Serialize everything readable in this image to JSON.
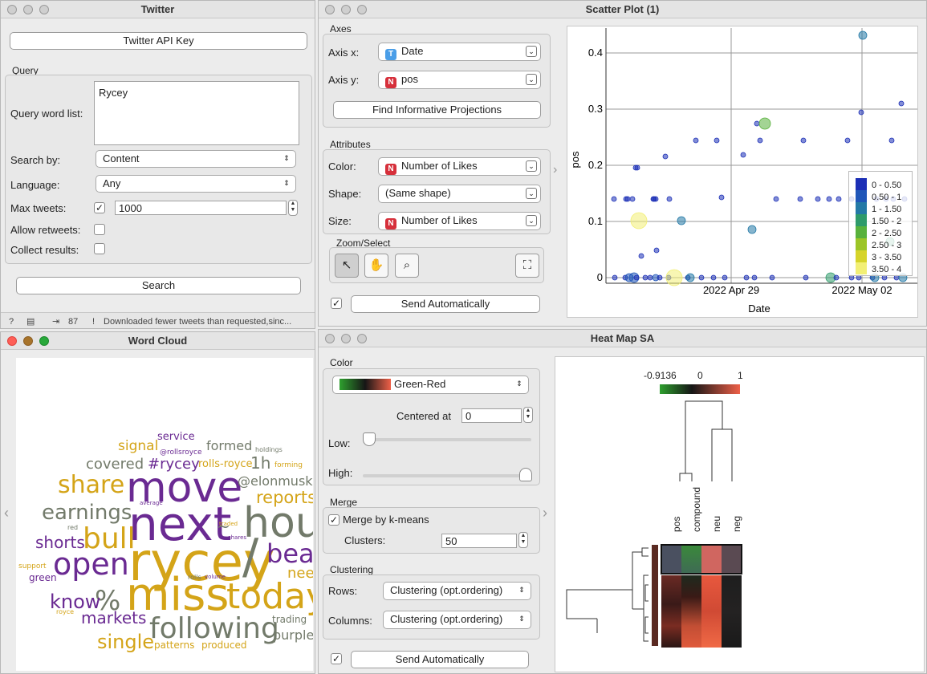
{
  "twitter": {
    "title": "Twitter",
    "api_key_button": "Twitter API Key",
    "query_group": "Query",
    "query_word_list_label": "Query word list:",
    "query_words": "Rycey",
    "search_by_label": "Search by:",
    "search_by_value": "Content",
    "language_label": "Language:",
    "language_value": "Any",
    "max_tweets_label": "Max tweets:",
    "max_tweets_value": "1000",
    "allow_retweets_label": "Allow retweets:",
    "collect_results_label": "Collect results:",
    "search_button": "Search",
    "status_count": "87",
    "status_message": "Downloaded fewer tweets than requested,sinc..."
  },
  "scatter": {
    "title": "Scatter Plot (1)",
    "axes_group": "Axes",
    "axis_x_label": "Axis x:",
    "axis_x_value": "Date",
    "axis_y_label": "Axis y:",
    "axis_y_value": "pos",
    "find_projections_button": "Find Informative Projections",
    "attributes_group": "Attributes",
    "color_label": "Color:",
    "color_value": "Number of Likes",
    "shape_label": "Shape:",
    "shape_value": "(Same shape)",
    "size_label": "Size:",
    "size_value": "Number of Likes",
    "zoom_group": "Zoom/Select",
    "send_auto_button": "Send Automatically",
    "plot": {
      "ylabel": "pos",
      "xlabel": "Date",
      "yticks": [
        "0",
        "0.1",
        "0.2",
        "0.3",
        "0.4"
      ],
      "xticks": [
        "2022 Apr 29",
        "2022 May 02"
      ],
      "legend": [
        {
          "label": "0 - 0.50",
          "color": "#1c2fb6"
        },
        {
          "label": "0.50 - 1",
          "color": "#1f56b8"
        },
        {
          "label": "1 - 1.50",
          "color": "#2379a6"
        },
        {
          "label": "1.50 - 2",
          "color": "#2e9a6a"
        },
        {
          "label": "2 - 2.50",
          "color": "#58b13c"
        },
        {
          "label": "2.50 - 3",
          "color": "#9cc527"
        },
        {
          "label": "3 - 3.50",
          "color": "#d6d42a"
        },
        {
          "label": "3.50 - 4",
          "color": "#f2ef75"
        }
      ]
    }
  },
  "wordcloud": {
    "title": "Word Cloud",
    "words": [
      {
        "text": "rycey",
        "color": "#d4a418"
      },
      {
        "text": "miss",
        "color": "#d4a418"
      },
      {
        "text": "next",
        "color": "#6a2a92"
      },
      {
        "text": "move",
        "color": "#6a2a92"
      },
      {
        "text": "hou",
        "color": "#727a6a"
      },
      {
        "text": "today",
        "color": "#d4a418"
      },
      {
        "text": "following",
        "color": "#727a6a"
      },
      {
        "text": "open",
        "color": "#6a2a92"
      },
      {
        "text": "bull",
        "color": "#d4a418"
      },
      {
        "text": "earnings",
        "color": "#727a6a"
      },
      {
        "text": "share",
        "color": "#d4a418"
      },
      {
        "text": "bea",
        "color": "#6a2a92"
      },
      {
        "text": "/",
        "color": "#727a6a"
      },
      {
        "text": "~",
        "color": "#727a6a"
      },
      {
        "text": "%",
        "color": "#727a6a"
      },
      {
        "text": "know",
        "color": "#6a2a92"
      },
      {
        "text": "markets",
        "color": "#6a2a92"
      },
      {
        "text": "single",
        "color": "#d4a418"
      },
      {
        "text": "reports",
        "color": "#d4a418"
      },
      {
        "text": "shorts",
        "color": "#6a2a92"
      },
      {
        "text": "covered",
        "color": "#727a6a"
      },
      {
        "text": "#rycey",
        "color": "#6a2a92"
      },
      {
        "text": "signal",
        "color": "#d4a418"
      },
      {
        "text": "formed",
        "color": "#727a6a"
      },
      {
        "text": "@elonmusk",
        "color": "#727a6a"
      },
      {
        "text": "1h",
        "color": "#727a6a"
      },
      {
        "text": "rolls-royce",
        "color": "#d4a418"
      },
      {
        "text": "service",
        "color": "#6a2a92"
      },
      {
        "text": "purple",
        "color": "#727a6a"
      },
      {
        "text": "trading",
        "color": "#727a6a"
      },
      {
        "text": "patterns",
        "color": "#d4a418"
      },
      {
        "text": "produced",
        "color": "#d4a418"
      },
      {
        "text": "nee",
        "color": "#d4a418"
      },
      {
        "text": "green",
        "color": "#6a2a92"
      },
      {
        "text": "support",
        "color": "#d4a418"
      },
      {
        "text": "@rollsroyce",
        "color": "#6a2a92"
      },
      {
        "text": "holdings",
        "color": "#727a6a"
      },
      {
        "text": "forming",
        "color": "#d4a418"
      },
      {
        "text": "average",
        "color": "#6a2a92"
      },
      {
        "text": "red",
        "color": "#727a6a"
      },
      {
        "text": "traded",
        "color": "#d4a418"
      },
      {
        "text": "shares",
        "color": "#6a2a92"
      },
      {
        "text": "rolls",
        "color": "#727a6a"
      },
      {
        "text": "volume",
        "color": "#6a2a92"
      },
      {
        "text": "royce",
        "color": "#d4a418"
      }
    ]
  },
  "heatmap": {
    "title": "Heat Map SA",
    "color_group": "Color",
    "palette_value": "Green-Red",
    "centered_label": "Centered at",
    "centered_value": "0",
    "low_label": "Low:",
    "high_label": "High:",
    "merge_group": "Merge",
    "merge_kmeans_label": "Merge by k-means",
    "clusters_label": "Clusters:",
    "clusters_value": "50",
    "clustering_group": "Clustering",
    "rows_label": "Rows:",
    "rows_value": "Clustering (opt.ordering)",
    "columns_label": "Columns:",
    "columns_value": "Clustering (opt.ordering)",
    "send_auto_button": "Send Automatically",
    "legend_min": "-0.9136",
    "legend_mid": "0",
    "legend_max": "1",
    "columns": [
      "pos",
      "compound",
      "neu",
      "neg"
    ]
  }
}
